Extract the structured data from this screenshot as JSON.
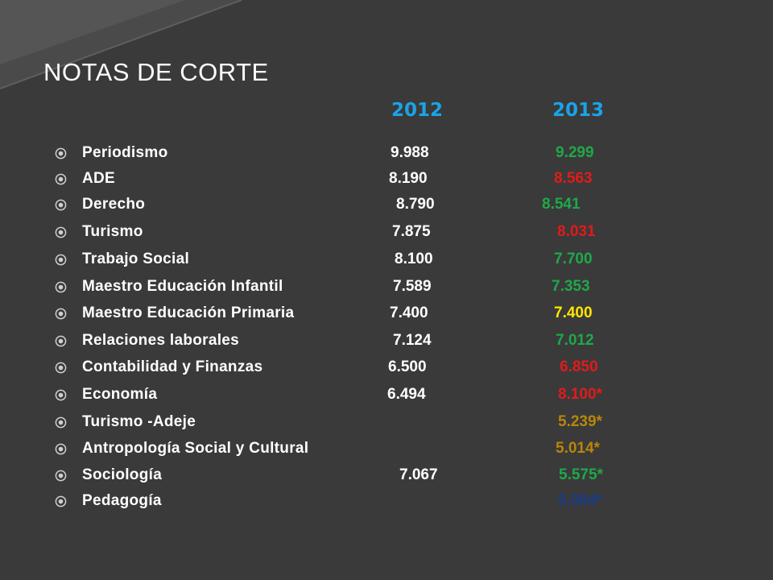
{
  "title": "NOTAS DE CORTE",
  "years": {
    "first": "2012",
    "second": "2013"
  },
  "colors": {
    "background": "#3a3a3a",
    "year": "#1aa3e8",
    "green": "#1fa84a",
    "red": "#e01b1b",
    "yellow": "#ffe600",
    "brown": "#b8860b",
    "navy": "#1a3a8a",
    "bullet": "#cfcfcf"
  },
  "bullet_icon": "target-circle-icon",
  "rows": [
    {
      "name": "Periodismo",
      "v2012": "9.988",
      "v2013": "9.299",
      "c2013": "#1fa84a"
    },
    {
      "name": "ADE",
      "v2012": "8.190",
      "v2013": "8.563",
      "c2013": "#e01b1b"
    },
    {
      "name": "Derecho",
      "v2012": "8.790",
      "v2013": "8.541",
      "c2013": "#1fa84a"
    },
    {
      "name": "Turismo",
      "v2012": "7.875",
      "v2013": "8.031",
      "c2013": "#e01b1b"
    },
    {
      "name": "Trabajo Social",
      "v2012": "8.100",
      "v2013": "7.700",
      "c2013": "#1fa84a"
    },
    {
      "name": "Maestro Educación Infantil",
      "v2012": "7.589",
      "v2013": "7.353",
      "c2013": "#1fa84a"
    },
    {
      "name": "Maestro Educación Primaria",
      "v2012": "7.400",
      "v2013": "7.400",
      "c2013": "#ffe600"
    },
    {
      "name": "Relaciones laborales",
      "v2012": "7.124",
      "v2013": "7.012",
      "c2013": "#1fa84a"
    },
    {
      "name": "Contabilidad y Finanzas",
      "v2012": "6.500",
      "v2013": "6.850",
      "c2013": "#e01b1b"
    },
    {
      "name": "Economía",
      "v2012": "6.494",
      "v2013": "8.100*",
      "c2013": "#e01b1b"
    },
    {
      "name": "Turismo -Adeje",
      "v2012": "",
      "v2013": "5.239*",
      "c2013": "#b8860b"
    },
    {
      "name": "Antropología Social y Cultural",
      "v2012": "",
      "v2013": "5.014*",
      "c2013": "#b8860b"
    },
    {
      "name": "Sociología",
      "v2012": "7.067",
      "v2013": "5.575*",
      "c2013": "#1fa84a"
    },
    {
      "name": "Pedagogía",
      "v2012": "",
      "v2013": "5.084*",
      "c2013": "#1a3a8a"
    }
  ]
}
